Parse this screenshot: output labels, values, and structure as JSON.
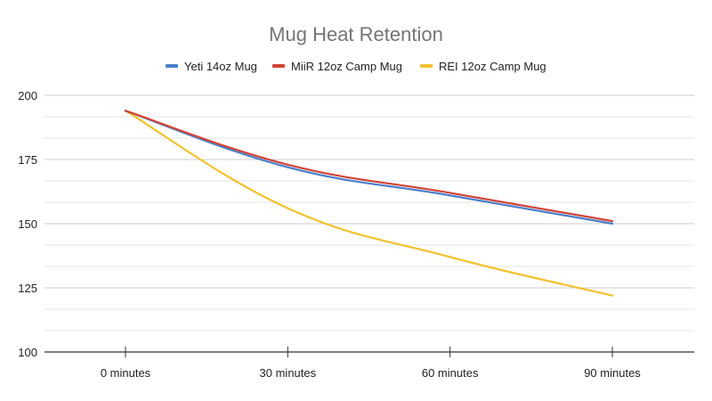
{
  "chart_data": {
    "type": "line",
    "title": "Mug Heat Retention",
    "xlabel": "",
    "ylabel": "",
    "categories": [
      "0 minutes",
      "30 minutes",
      "60 minutes",
      "90 minutes"
    ],
    "ylim": [
      100,
      200
    ],
    "yticks": [
      100,
      125,
      150,
      175,
      200
    ],
    "ytick_labels": [
      "100",
      "125",
      "150",
      "175",
      "200"
    ],
    "grid": true,
    "legend_position": "top",
    "series": [
      {
        "name": "Yeti 14oz Mug",
        "color": "#4a7fcb",
        "values": [
          194,
          172,
          161,
          150
        ]
      },
      {
        "name": "MiiR 12oz Camp Mug",
        "color": "#d04437",
        "values": [
          194,
          173,
          162,
          151
        ]
      },
      {
        "name": "REI 12oz Camp Mug",
        "color": "#f2c12e",
        "values": [
          194,
          156,
          137,
          122
        ]
      }
    ]
  }
}
